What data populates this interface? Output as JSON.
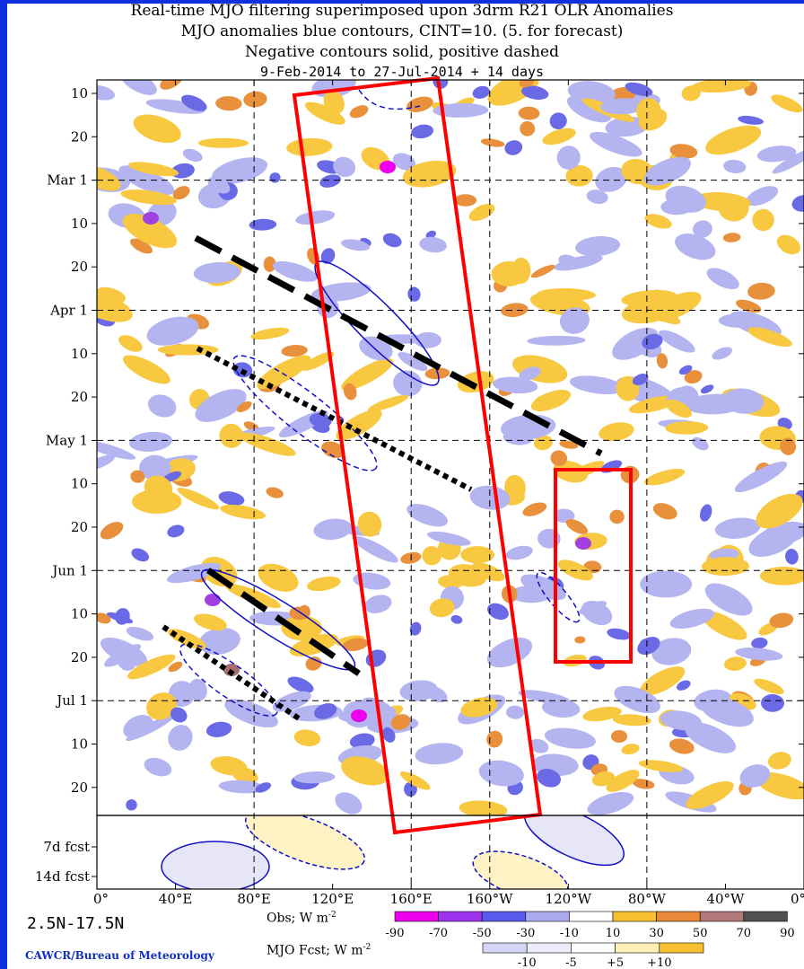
{
  "titles": {
    "line1": "Real-time MJO filtering superimposed upon 3drm R21 OLR Anomalies",
    "line2": "MJO anomalies blue contours, CINT=10. (5. for forecast)",
    "line3": "Negative contours solid, positive dashed",
    "line4": "9-Feb-2014 to 27-Jul-2014 + 14 days"
  },
  "chart_data": {
    "type": "heatmap",
    "title": "Real-time MJO filtering superimposed upon 3drm R21 OLR Anomalies",
    "x_axis": {
      "ticks": [
        "0°",
        "40°E",
        "80°E",
        "120°E",
        "160°E",
        "160°W",
        "120°W",
        "80°W",
        "40°W",
        "0°"
      ],
      "values": [
        0,
        40,
        80,
        120,
        160,
        200,
        240,
        280,
        320,
        360
      ],
      "range": [
        0,
        360
      ]
    },
    "y_axis": {
      "labels": [
        "10",
        "20",
        "Mar 1",
        "10",
        "20",
        "Apr 1",
        "10",
        "20",
        "May 1",
        "10",
        "20",
        "Jun 1",
        "10",
        "20",
        "Jul 1",
        "10",
        "20"
      ],
      "range": [
        "2014-02-09",
        "2014-07-27"
      ]
    },
    "forecast_axis": {
      "labels": [
        "7d fcst",
        "14d fcst"
      ]
    },
    "grid": true,
    "legend_obs": {
      "label": "Obs; W m",
      "exponent": "-2",
      "boundaries": [
        "-90",
        "-70",
        "-50",
        "-30",
        "-10",
        "10",
        "30",
        "50",
        "70",
        "90"
      ],
      "colors": [
        "#ee00ee",
        "#9e33ee",
        "#5a5aee",
        "#aaaaee",
        "#ffffff",
        "#f6c030",
        "#e88a3a",
        "#b07878",
        "#505050"
      ]
    },
    "legend_fcst": {
      "label": "MJO Fcst; W m",
      "exponent": "-2",
      "boundaries": [
        "-10",
        "-5",
        "+5",
        "+10"
      ],
      "colors": [
        "#d4d4f4",
        "#ececfa",
        "#ffffff",
        "#fff0b8",
        "#f6c030"
      ]
    },
    "region": "2.5N-17.5N"
  },
  "credit": "CAWCR/Bureau of Meteorology",
  "colors": {
    "obs_neg_weak": "#b4b4f0",
    "obs_neg_mod": "#6a6ae6",
    "obs_neg_strong": "#a040e0",
    "obs_neg_max": "#ee00ee",
    "obs_pos_weak": "#f8c840",
    "obs_pos_mod": "#e8903c",
    "obs_pos_strong": "#a86e6e",
    "contour": "#1010c8",
    "annot_box": "#ff0000"
  }
}
